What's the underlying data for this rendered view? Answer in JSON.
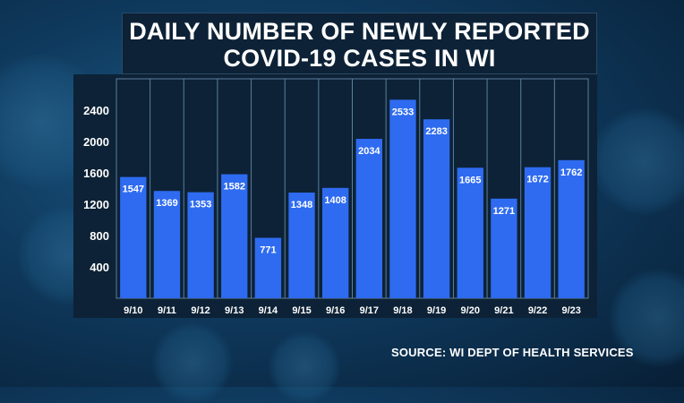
{
  "title_line1": "DAILY NUMBER OF NEWLY REPORTED",
  "title_line2": "COVID-19 CASES IN WI",
  "source": "SOURCE: WI DEPT OF HEALTH SERVICES",
  "colors": {
    "bar": "#2e6bf0",
    "grid": "#5c7f9c",
    "text": "#ffffff",
    "panel": "#0d2236"
  },
  "chart_data": {
    "type": "bar",
    "title": "DAILY NUMBER OF NEWLY REPORTED COVID-19 CASES IN WI",
    "categories": [
      "9/10",
      "9/11",
      "9/12",
      "9/13",
      "9/14",
      "9/15",
      "9/16",
      "9/17",
      "9/18",
      "9/19",
      "9/20",
      "9/21",
      "9/22",
      "9/23"
    ],
    "values": [
      1547,
      1369,
      1353,
      1582,
      771,
      1348,
      1408,
      2034,
      2533,
      2283,
      1665,
      1271,
      1672,
      1762
    ],
    "yticks": [
      400,
      800,
      1200,
      1600,
      2000,
      2400
    ],
    "ylim": [
      0,
      2800
    ],
    "grid": true,
    "xlabel": "",
    "ylabel": ""
  }
}
